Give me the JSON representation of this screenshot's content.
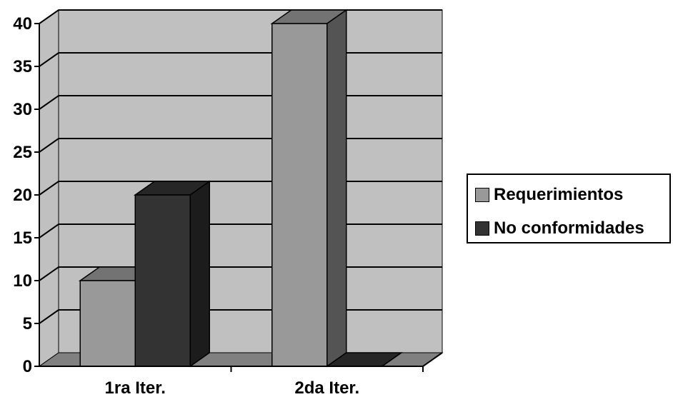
{
  "chart_data": {
    "type": "bar",
    "categories": [
      "1ra Iter.",
      "2da Iter."
    ],
    "series": [
      {
        "name": "Requerimientos",
        "values": [
          10,
          40
        ],
        "color": "#999999"
      },
      {
        "name": "No conformidades",
        "values": [
          20,
          0
        ],
        "color": "#333333"
      }
    ],
    "y_ticks": [
      "0",
      "5",
      "10",
      "15",
      "20",
      "25",
      "30",
      "35",
      "40"
    ],
    "ylim": [
      0,
      40
    ],
    "grid": true,
    "legend_position": "right",
    "style": "3d-column",
    "wall_color": "#c0c0c0",
    "floor_color": "#808080"
  }
}
